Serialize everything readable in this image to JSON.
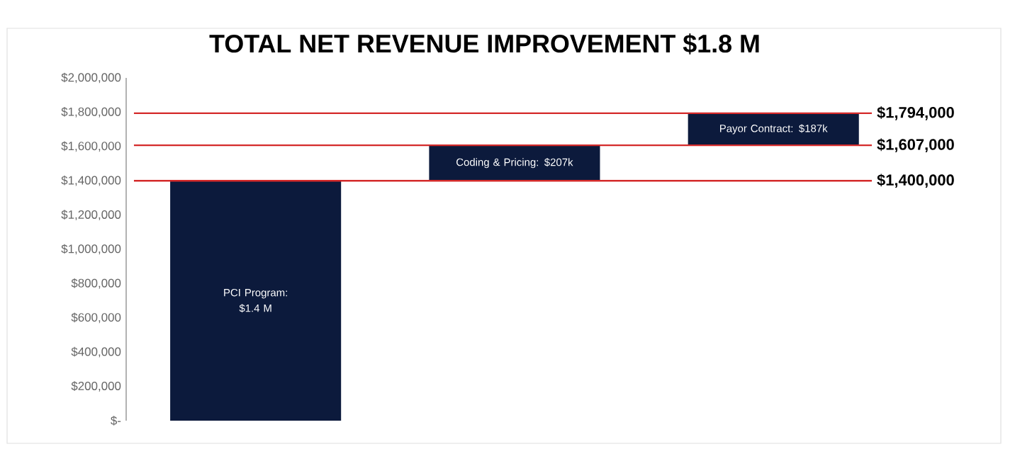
{
  "chart_data": {
    "type": "bar",
    "title": "TOTAL NET REVENUE IMPROVEMENT $1.8 M",
    "categories": [
      null,
      null,
      null
    ],
    "values": [
      1400000,
      207000,
      187000
    ],
    "base": [
      0,
      1400000,
      1607000
    ],
    "color": "#0c1a3c",
    "value_labels": [
      "PCI Program: $1.4 M",
      "Coding & Pricing: $207k",
      "Payor Contract: $187k"
    ],
    "ylim": [
      0,
      2000000
    ],
    "yticks": [
      {
        "value": 0,
        "label": "$-"
      },
      {
        "value": 200000,
        "label": "$200,000"
      },
      {
        "value": 400000,
        "label": "$400,000"
      },
      {
        "value": 600000,
        "label": "$600,000"
      },
      {
        "value": 800000,
        "label": "$800,000"
      },
      {
        "value": 1000000,
        "label": "$1,000,000"
      },
      {
        "value": 1200000,
        "label": "$1,200,000"
      },
      {
        "value": 1400000,
        "label": "$1,400,000"
      },
      {
        "value": 1600000,
        "label": "$1,600,000"
      },
      {
        "value": 1800000,
        "label": "$1,800,000"
      },
      {
        "value": 2000000,
        "label": "$2,000,000"
      }
    ],
    "ref_lines": [
      {
        "axis": "y",
        "value": 1400000,
        "label": "$1,400,000",
        "color": "#d42a2a"
      },
      {
        "axis": "y",
        "value": 1607000,
        "label": "$1,607,000",
        "color": "#d42a2a"
      },
      {
        "axis": "y",
        "value": 1794000,
        "label": "$1,794,000",
        "color": "#d42a2a"
      }
    ],
    "tick_labels": "y"
  }
}
